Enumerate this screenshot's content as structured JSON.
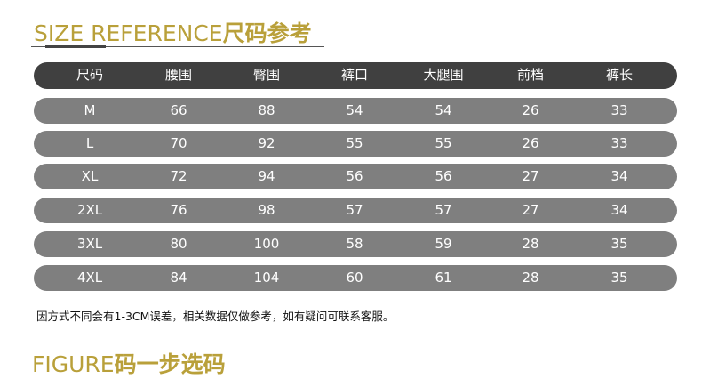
{
  "header": {
    "title_en": "SIZE REFERENCE",
    "title_cn": "尺码参考"
  },
  "colors": {
    "accent": "#b9a03a",
    "header_row": "#404040",
    "data_row": "#7f7f7f"
  },
  "table": {
    "columns": [
      "尺码",
      "腰围",
      "臀围",
      "裤口",
      "大腿围",
      "前档",
      "裤长"
    ],
    "rows": [
      [
        "M",
        "66",
        "88",
        "54",
        "54",
        "26",
        "33"
      ],
      [
        "L",
        "70",
        "92",
        "55",
        "55",
        "26",
        "33"
      ],
      [
        "XL",
        "72",
        "94",
        "56",
        "56",
        "27",
        "34"
      ],
      [
        "2XL",
        "76",
        "98",
        "57",
        "57",
        "27",
        "34"
      ],
      [
        "3XL",
        "80",
        "100",
        "58",
        "59",
        "28",
        "35"
      ],
      [
        "4XL",
        "84",
        "104",
        "60",
        "61",
        "28",
        "35"
      ]
    ]
  },
  "note": "因方式不同会有1-3CM误差，相关数据仅做参考，如有疑问可联系客服。",
  "footer": {
    "title_en": "FIGURE",
    "title_cn": "码一步选码"
  }
}
